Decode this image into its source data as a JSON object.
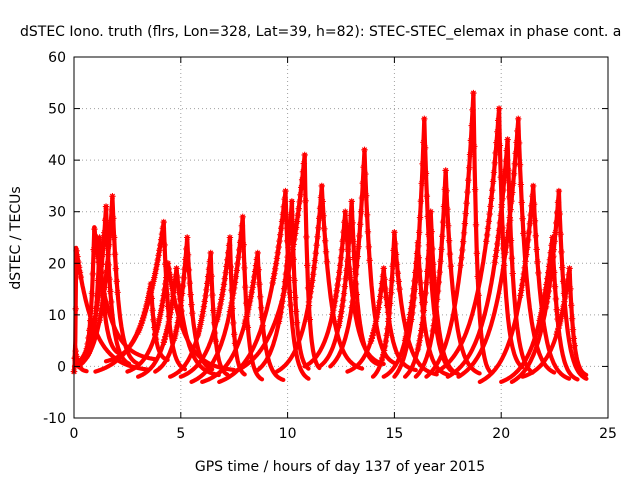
{
  "chart_data": {
    "type": "scatter",
    "title": "dSTEC Iono. truth (flrs, Lon=328, Lat=39, h=82): STEC-STEC_elemax in phase cont. a",
    "xlabel": "GPS time / hours of day 137 of year 2015",
    "ylabel": "dSTEC  / TECUs",
    "xlim": [
      0,
      25
    ],
    "ylim": [
      -10,
      60
    ],
    "x_ticks": [
      0,
      5,
      10,
      15,
      20,
      25
    ],
    "y_ticks": [
      -10,
      0,
      10,
      20,
      30,
      40,
      50,
      60
    ],
    "x_tick_labels": [
      "0",
      "5",
      "10",
      "15",
      "20",
      "25"
    ],
    "y_tick_labels": [
      "-10",
      "0",
      "10",
      "20",
      "30",
      "40",
      "50",
      "60"
    ],
    "grid": true,
    "legend": "none",
    "marker": "plus-star",
    "marker_color": "#ff0000",
    "series": [
      {
        "t_start": 0.0,
        "t_max": 0.1,
        "t_end": 3.5,
        "peak": 23,
        "min": -1
      },
      {
        "t_start": 0.0,
        "t_max": 0.05,
        "t_end": 0.6,
        "peak": 4,
        "min": -1
      },
      {
        "t_start": 0.0,
        "t_max": 1.5,
        "t_end": 2.6,
        "peak": 31,
        "min": 0
      },
      {
        "t_start": 0.2,
        "t_max": 1.8,
        "t_end": 3.0,
        "peak": 33,
        "min": 0
      },
      {
        "t_start": 0.4,
        "t_max": 0.95,
        "t_end": 3.8,
        "peak": 27,
        "min": 1
      },
      {
        "t_start": 0.6,
        "t_max": 1.2,
        "t_end": 2.2,
        "peak": 25,
        "min": 2
      },
      {
        "t_start": 1.0,
        "t_max": 4.2,
        "t_end": 5.2,
        "peak": 28,
        "min": -1
      },
      {
        "t_start": 1.5,
        "t_max": 3.6,
        "t_end": 4.4,
        "peak": 16,
        "min": 1
      },
      {
        "t_start": 2.5,
        "t_max": 4.4,
        "t_end": 7.5,
        "peak": 20,
        "min": -1
      },
      {
        "t_start": 3.0,
        "t_max": 4.8,
        "t_end": 6.8,
        "peak": 19,
        "min": -2
      },
      {
        "t_start": 3.8,
        "t_max": 5.3,
        "t_end": 6.5,
        "peak": 25,
        "min": -1
      },
      {
        "t_start": 4.5,
        "t_max": 6.4,
        "t_end": 7.2,
        "peak": 22,
        "min": -2
      },
      {
        "t_start": 5.0,
        "t_max": 7.3,
        "t_end": 8.0,
        "peak": 25,
        "min": -2
      },
      {
        "t_start": 5.5,
        "t_max": 7.9,
        "t_end": 8.8,
        "peak": 29,
        "min": -3
      },
      {
        "t_start": 6.0,
        "t_max": 8.6,
        "t_end": 9.8,
        "peak": 22,
        "min": -3
      },
      {
        "t_start": 6.8,
        "t_max": 9.9,
        "t_end": 11.0,
        "peak": 34,
        "min": -3
      },
      {
        "t_start": 7.5,
        "t_max": 10.8,
        "t_end": 11.5,
        "peak": 41,
        "min": -1
      },
      {
        "t_start": 8.5,
        "t_max": 10.2,
        "t_end": 11.0,
        "peak": 32,
        "min": -1
      },
      {
        "t_start": 9.5,
        "t_max": 11.6,
        "t_end": 13.5,
        "peak": 35,
        "min": -1
      },
      {
        "t_start": 10.8,
        "t_max": 12.7,
        "t_end": 14.5,
        "peak": 30,
        "min": 0
      },
      {
        "t_start": 11.5,
        "t_max": 13.0,
        "t_end": 14.2,
        "peak": 32,
        "min": 0
      },
      {
        "t_start": 12.0,
        "t_max": 13.6,
        "t_end": 15.0,
        "peak": 42,
        "min": 0
      },
      {
        "t_start": 12.8,
        "t_max": 14.5,
        "t_end": 16.0,
        "peak": 19,
        "min": -1
      },
      {
        "t_start": 14.0,
        "t_max": 15.0,
        "t_end": 17.0,
        "peak": 26,
        "min": -2
      },
      {
        "t_start": 14.5,
        "t_max": 16.1,
        "t_end": 17.5,
        "peak": 24,
        "min": -2
      },
      {
        "t_start": 15.0,
        "t_max": 16.4,
        "t_end": 17.8,
        "peak": 48,
        "min": -2
      },
      {
        "t_start": 15.5,
        "t_max": 16.7,
        "t_end": 18.0,
        "peak": 30,
        "min": -2
      },
      {
        "t_start": 16.0,
        "t_max": 17.4,
        "t_end": 19.0,
        "peak": 38,
        "min": -2
      },
      {
        "t_start": 16.5,
        "t_max": 18.7,
        "t_end": 19.5,
        "peak": 53,
        "min": -2
      },
      {
        "t_start": 17.0,
        "t_max": 19.9,
        "t_end": 21.0,
        "peak": 50,
        "min": -1
      },
      {
        "t_start": 17.5,
        "t_max": 20.3,
        "t_end": 21.5,
        "peak": 44,
        "min": -2
      },
      {
        "t_start": 18.0,
        "t_max": 20.8,
        "t_end": 22.5,
        "peak": 48,
        "min": -2
      },
      {
        "t_start": 19.0,
        "t_max": 21.5,
        "t_end": 23.2,
        "peak": 35,
        "min": -3
      },
      {
        "t_start": 20.0,
        "t_max": 22.4,
        "t_end": 23.6,
        "peak": 25,
        "min": -3
      },
      {
        "t_start": 20.5,
        "t_max": 22.7,
        "t_end": 24.0,
        "peak": 34,
        "min": -3
      },
      {
        "t_start": 21.0,
        "t_max": 23.2,
        "t_end": 24.0,
        "peak": 19,
        "min": -2
      }
    ]
  }
}
